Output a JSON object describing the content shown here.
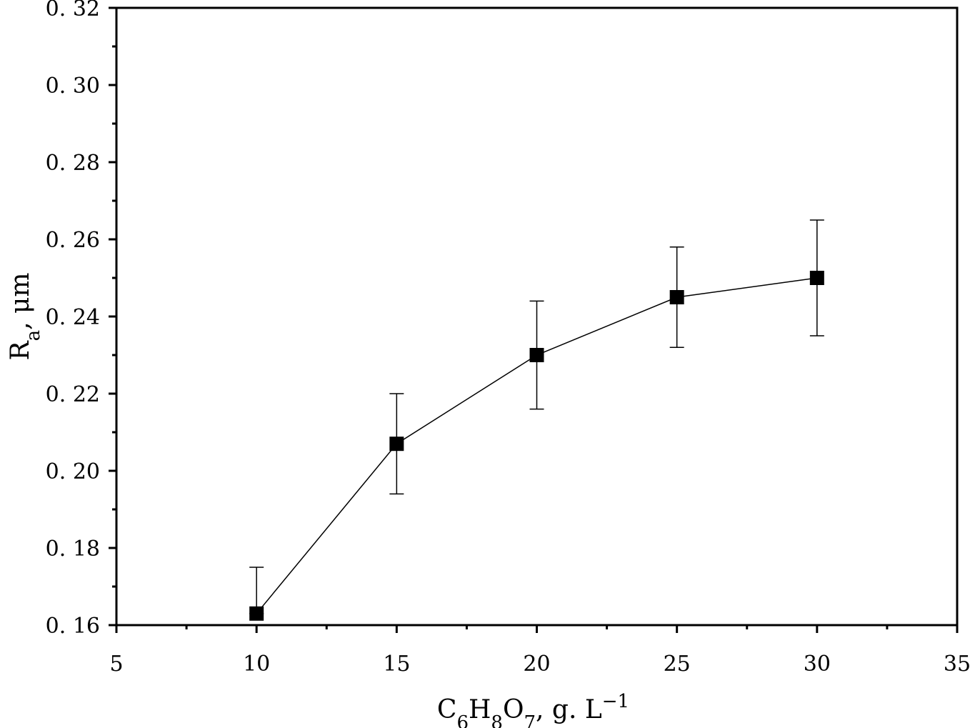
{
  "chart_data": {
    "type": "scatter",
    "title": "",
    "xlabel": {
      "parts": [
        {
          "text": "C",
          "style": "normal"
        },
        {
          "text": "6",
          "style": "sub"
        },
        {
          "text": "H",
          "style": "normal"
        },
        {
          "text": "8",
          "style": "sub"
        },
        {
          "text": "O",
          "style": "normal"
        },
        {
          "text": "7",
          "style": "sub"
        },
        {
          "text": ",   g. L",
          "style": "normal"
        },
        {
          "text": "−1",
          "style": "sup"
        }
      ]
    },
    "ylabel": {
      "parts": [
        {
          "text": "R",
          "style": "normal"
        },
        {
          "text": "a",
          "style": "sub"
        },
        {
          "text": ", μm",
          "style": "normal"
        }
      ]
    },
    "xlim": [
      5,
      35
    ],
    "ylim": [
      0.16,
      0.32
    ],
    "x_major_ticks": [
      5,
      10,
      15,
      20,
      25,
      30,
      35
    ],
    "x_tick_labels": [
      "5",
      "10",
      "15",
      "20",
      "25",
      "30",
      "35"
    ],
    "y_major_ticks": [
      0.16,
      0.18,
      0.2,
      0.22,
      0.24,
      0.26,
      0.28,
      0.3,
      0.32
    ],
    "y_tick_labels": [
      "0. 16",
      "0. 18",
      "0. 20",
      "0. 22",
      "0. 24",
      "0. 26",
      "0. 28",
      "0. 30",
      "0. 32"
    ],
    "grid": false,
    "legend": "none",
    "series": [
      {
        "marker": "square",
        "color": "#000000",
        "connected": true,
        "x": [
          10,
          15,
          20,
          25,
          30
        ],
        "y": [
          0.163,
          0.207,
          0.23,
          0.245,
          0.25
        ],
        "error_upper": [
          0.175,
          0.22,
          0.244,
          0.258,
          0.265
        ],
        "error_lower": [
          0.163,
          0.194,
          0.216,
          0.232,
          0.235
        ]
      }
    ]
  }
}
